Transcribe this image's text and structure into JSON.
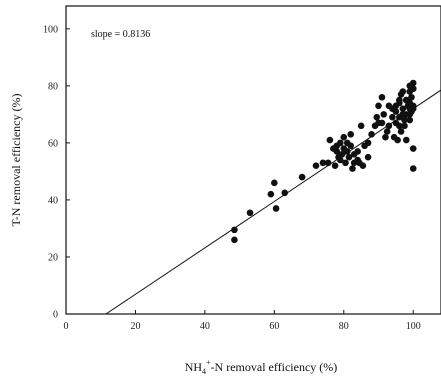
{
  "chart_data": {
    "type": "scatter",
    "xlabel": "NH4+-N removal efficiency (%)",
    "xlabel_parts": {
      "main": "NH",
      "sub": "4",
      "sup": "+",
      "rest": "-N  removal efficiency (%)"
    },
    "ylabel": "T-N removal efficiency (%)",
    "xlim": [
      0,
      108
    ],
    "ylim": [
      0,
      108
    ],
    "xticks": [
      0,
      20,
      40,
      60,
      80,
      100
    ],
    "yticks": [
      0,
      20,
      40,
      60,
      80,
      100
    ],
    "annotation": "slope = 0.8136",
    "grid": false,
    "regression_line": {
      "slope": 0.8136,
      "x_start": 11.5,
      "x_end": 108
    },
    "series": [
      {
        "x": [
          48.5,
          48.5,
          53,
          59,
          60,
          60.5,
          63,
          68,
          72,
          74,
          75.5,
          76,
          77,
          77.5,
          78,
          78,
          78.5,
          79,
          79,
          79.5,
          80,
          80,
          80.5,
          81,
          81,
          81.5,
          82,
          82,
          82.5,
          83,
          83,
          84,
          84,
          84.5,
          85,
          85.5,
          86,
          87,
          87,
          88,
          89,
          89.5,
          90,
          90,
          91,
          91,
          91.5,
          92,
          92.5,
          93,
          93,
          94,
          94,
          94.5,
          95,
          95,
          95,
          95.5,
          96,
          96,
          96,
          96.5,
          97,
          97,
          97,
          97.5,
          98,
          98,
          98,
          98.5,
          99,
          99,
          99,
          99,
          99.5,
          99.5,
          100,
          100,
          100,
          100,
          100,
          98,
          97,
          96,
          99,
          100,
          97.5,
          99,
          96.5,
          100
        ],
        "y": [
          29.5,
          26,
          35.5,
          42,
          46,
          37,
          42.5,
          48,
          52,
          53,
          53,
          61,
          58,
          52,
          57,
          59,
          55,
          60,
          54,
          56,
          58,
          62,
          53,
          57,
          60,
          55,
          59,
          63,
          51,
          56,
          53,
          54,
          57,
          53,
          66,
          52,
          59,
          60,
          55,
          63,
          66,
          69,
          67,
          73,
          67,
          76,
          70,
          62,
          64,
          73,
          66,
          72,
          69,
          62,
          71,
          67,
          73,
          61,
          75,
          69,
          66,
          77,
          70,
          72,
          78,
          66,
          70,
          75,
          61,
          73,
          72,
          68,
          74,
          80,
          76,
          71,
          79,
          81,
          73,
          58,
          51,
          75,
          70,
          74,
          78,
          72,
          68,
          70,
          64,
          79
        ]
      }
    ]
  }
}
